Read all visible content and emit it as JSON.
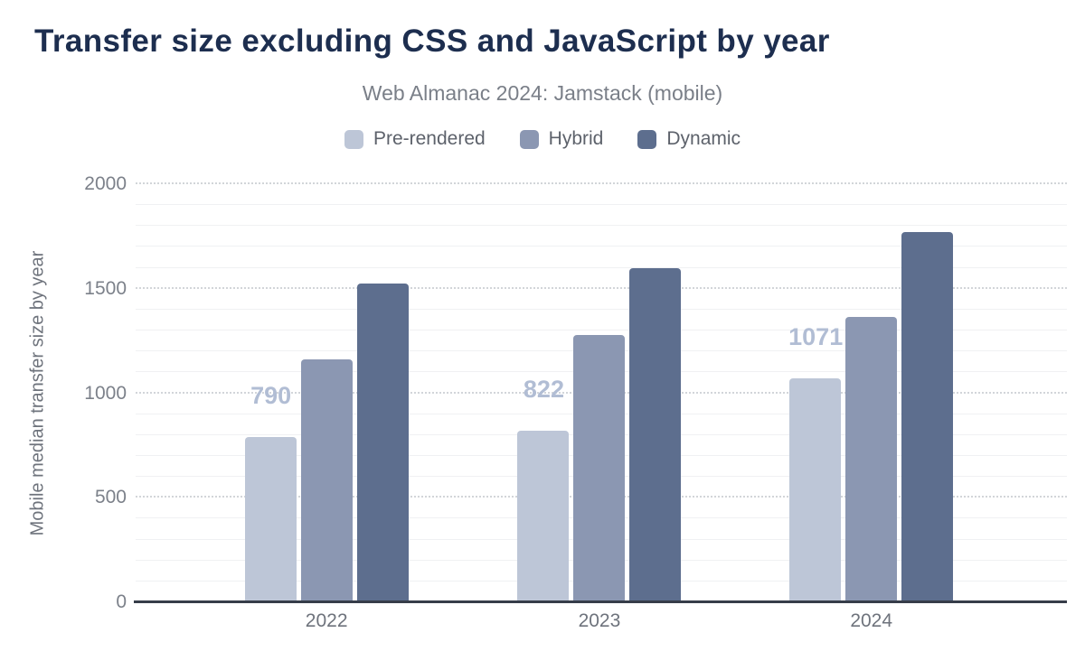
{
  "title": "Transfer size excluding CSS and JavaScript by year",
  "subtitle": "Web Almanac 2024: Jamstack (mobile)",
  "chart_data": {
    "type": "bar",
    "title": "Transfer size excluding CSS and JavaScript by year",
    "subtitle": "Web Almanac 2024: Jamstack (mobile)",
    "categories": [
      "2022",
      "2023",
      "2024"
    ],
    "series": [
      {
        "name": "Pre-rendered",
        "color": "#bdc6d7",
        "values": [
          790,
          822,
          1071
        ],
        "show_labels": true
      },
      {
        "name": "Hybrid",
        "color": "#8b97b2",
        "values": [
          1160,
          1277,
          1364
        ],
        "show_labels": false
      },
      {
        "name": "Dynamic",
        "color": "#5d6e8e",
        "values": [
          1527,
          1600,
          1772
        ],
        "show_labels": false
      }
    ],
    "data_labels": [
      "790",
      "822",
      "1071"
    ],
    "xlabel": "",
    "ylabel": "Mobile median transfer size by year",
    "ylim": [
      0,
      2000
    ],
    "yticks": [
      0,
      500,
      1000,
      1500,
      2000
    ],
    "grid": {
      "major_step": 500,
      "minor_step": 100,
      "major_style": "dotted",
      "minor_style": "solid"
    },
    "legend_position": "top"
  },
  "colors": {
    "title": "#1d2e4f",
    "subtitle": "#7a7f88",
    "axis_text": "#7c818a",
    "axis_line": "#363d49",
    "data_label": "#b1bdd4",
    "background": "#ffffff"
  }
}
